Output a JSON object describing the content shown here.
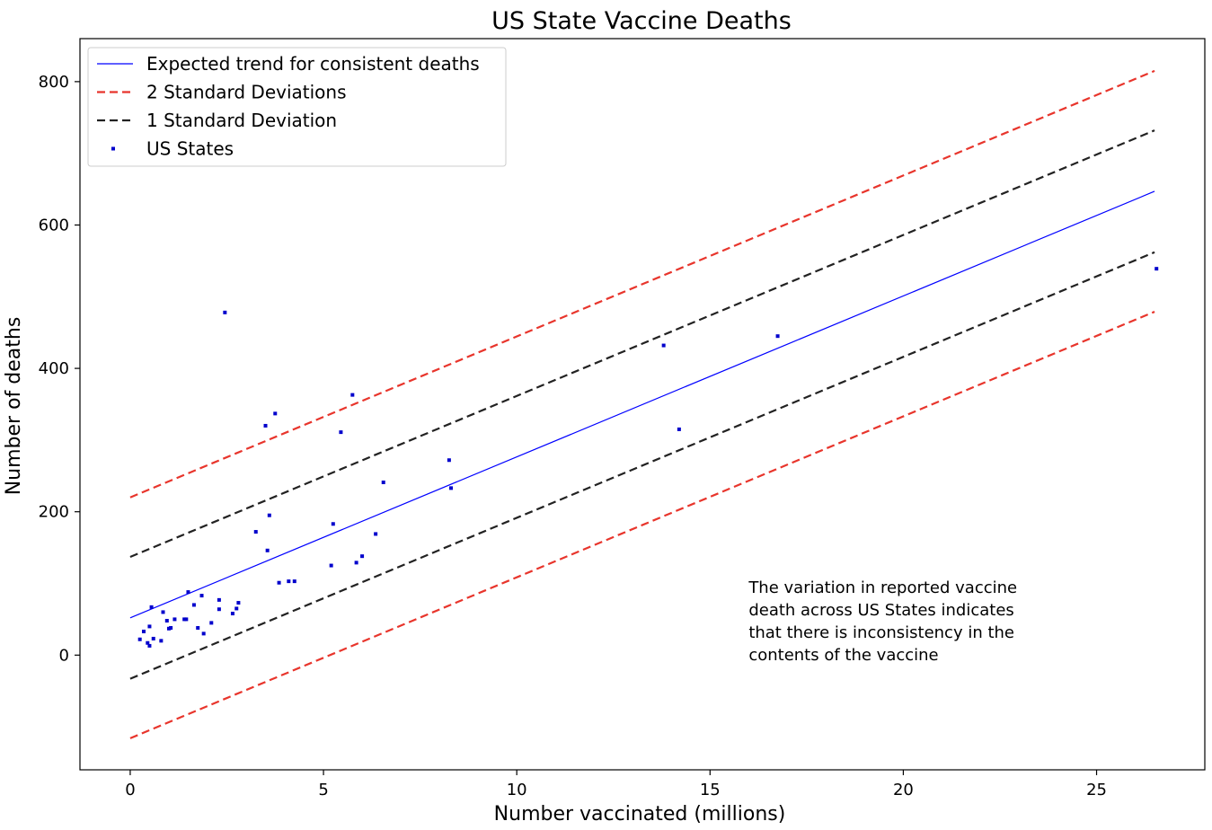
{
  "chart_data": {
    "type": "scatter",
    "title": "US State Vaccine Deaths",
    "xlabel": "Number vaccinated (millions)",
    "ylabel": "Number of deaths",
    "xlim": [
      -1.3,
      27.8
    ],
    "ylim": [
      -160,
      860
    ],
    "xticks": [
      0,
      5,
      10,
      15,
      20,
      25
    ],
    "yticks": [
      0,
      200,
      400,
      600,
      800
    ],
    "grid": false,
    "legend_position": "top-left",
    "series": [
      {
        "name": "Expected trend for consistent deaths",
        "kind": "line",
        "style": "solid",
        "color": "#0000ff",
        "x": [
          0,
          26.5
        ],
        "y": [
          52,
          647
        ]
      },
      {
        "name": "2 Standard Deviations",
        "kind": "line",
        "style": "dashed",
        "color": "#e8352c",
        "x": [
          0,
          26.5
        ],
        "y": [
          220,
          815
        ]
      },
      {
        "name": "2 Standard Deviations",
        "kind": "line",
        "style": "dashed",
        "color": "#e8352c",
        "show_in_legend": false,
        "x": [
          0,
          26.5
        ],
        "y": [
          -116,
          479
        ]
      },
      {
        "name": "1 Standard Deviation",
        "kind": "line",
        "style": "dashed",
        "color": "#222222",
        "x": [
          0,
          26.5
        ],
        "y": [
          137,
          732
        ]
      },
      {
        "name": "1 Standard Deviation",
        "kind": "line",
        "style": "dashed",
        "color": "#222222",
        "show_in_legend": false,
        "x": [
          0,
          26.5
        ],
        "y": [
          -33,
          562
        ]
      },
      {
        "name": "US States",
        "kind": "scatter",
        "color": "#0000cc",
        "points": [
          [
            0.25,
            22
          ],
          [
            0.35,
            33
          ],
          [
            0.45,
            17
          ],
          [
            0.5,
            13
          ],
          [
            0.5,
            40
          ],
          [
            0.55,
            67
          ],
          [
            0.6,
            23
          ],
          [
            0.8,
            20
          ],
          [
            0.85,
            60
          ],
          [
            0.95,
            48
          ],
          [
            1.0,
            37
          ],
          [
            1.05,
            38
          ],
          [
            1.15,
            50
          ],
          [
            1.4,
            50
          ],
          [
            1.45,
            50
          ],
          [
            1.5,
            88
          ],
          [
            1.65,
            70
          ],
          [
            1.75,
            38
          ],
          [
            1.85,
            83
          ],
          [
            1.9,
            30
          ],
          [
            2.1,
            45
          ],
          [
            2.3,
            77
          ],
          [
            2.3,
            64
          ],
          [
            2.45,
            478
          ],
          [
            2.65,
            58
          ],
          [
            2.75,
            65
          ],
          [
            2.8,
            73
          ],
          [
            3.25,
            172
          ],
          [
            3.5,
            320
          ],
          [
            3.55,
            146
          ],
          [
            3.6,
            195
          ],
          [
            3.75,
            337
          ],
          [
            3.85,
            101
          ],
          [
            4.1,
            103
          ],
          [
            4.25,
            103
          ],
          [
            5.2,
            125
          ],
          [
            5.25,
            183
          ],
          [
            5.45,
            311
          ],
          [
            5.75,
            363
          ],
          [
            5.85,
            129
          ],
          [
            6.0,
            138
          ],
          [
            6.35,
            169
          ],
          [
            6.55,
            241
          ],
          [
            8.25,
            272
          ],
          [
            8.3,
            233
          ],
          [
            13.8,
            432
          ],
          [
            14.2,
            315
          ],
          [
            16.75,
            445
          ],
          [
            26.55,
            539
          ]
        ]
      }
    ],
    "annotation": {
      "lines": [
        "The variation in reported vaccine",
        "death across US States indicates",
        "that there is inconsistency in the",
        "contents of the vaccine"
      ],
      "anchor": [
        16.0,
        117
      ]
    }
  }
}
